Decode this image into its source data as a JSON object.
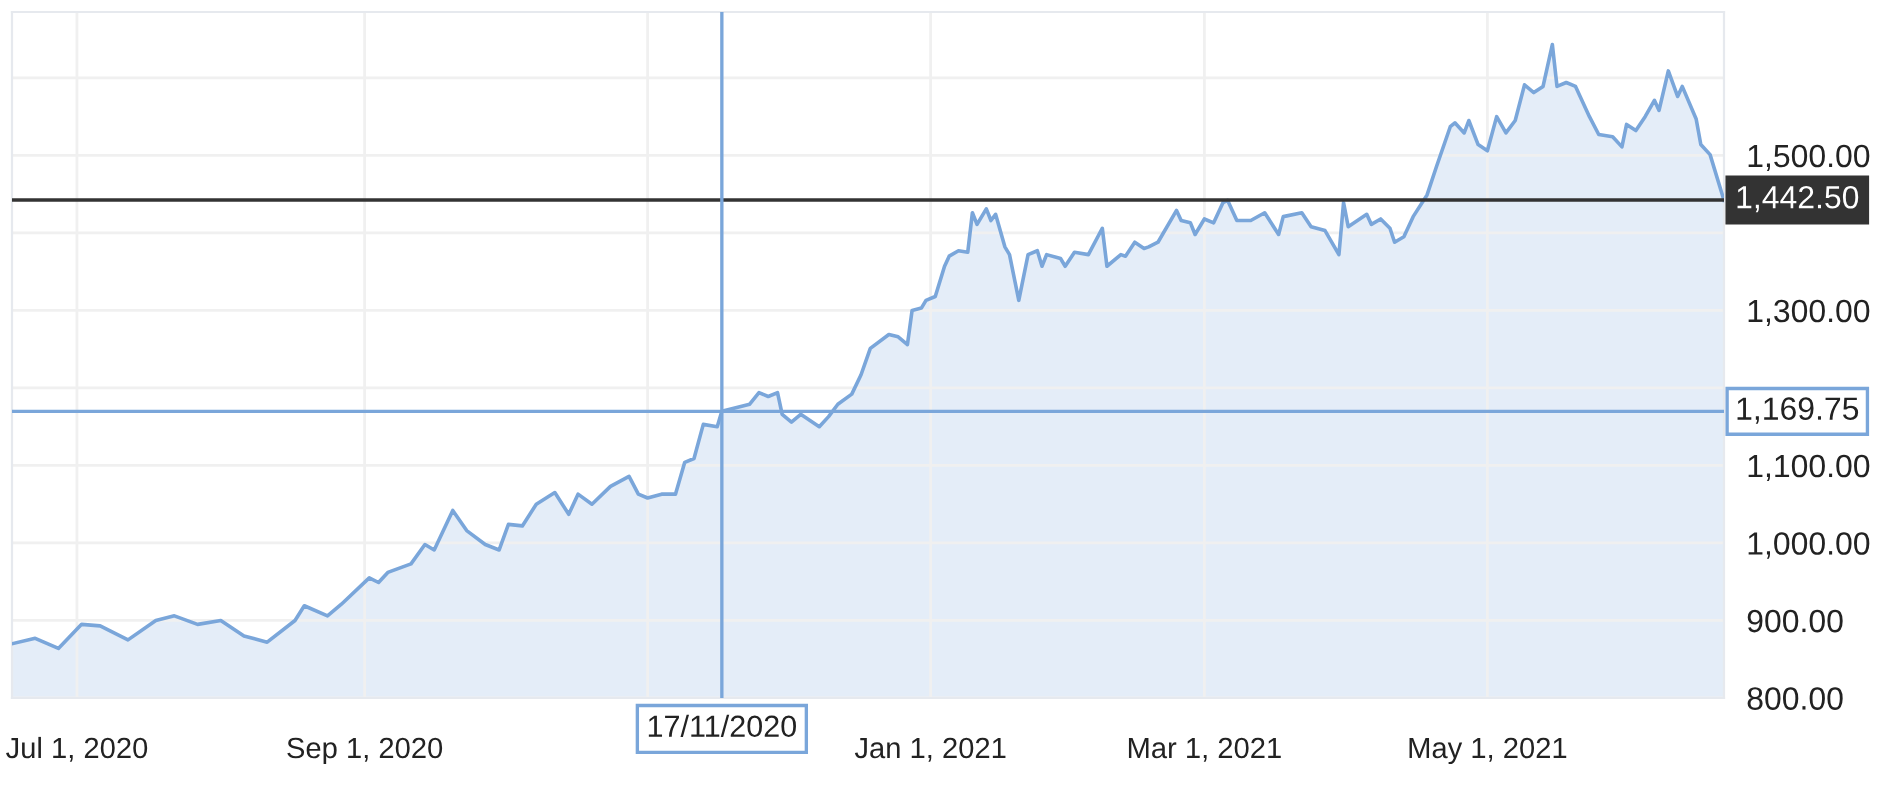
{
  "chart_data": {
    "type": "area",
    "x": [
      "2020-06-17",
      "2020-06-22",
      "2020-06-27",
      "2020-07-02",
      "2020-07-06",
      "2020-07-12",
      "2020-07-18",
      "2020-07-22",
      "2020-07-27",
      "2020-08-01",
      "2020-08-06",
      "2020-08-11",
      "2020-08-17",
      "2020-08-19",
      "2020-08-24",
      "2020-08-27",
      "2020-09-02",
      "2020-09-04",
      "2020-09-06",
      "2020-09-11",
      "2020-09-14",
      "2020-09-16",
      "2020-09-20",
      "2020-09-23",
      "2020-09-27",
      "2020-09-30",
      "2020-10-02",
      "2020-10-05",
      "2020-10-08",
      "2020-10-12",
      "2020-10-15",
      "2020-10-17",
      "2020-10-20",
      "2020-10-24",
      "2020-10-28",
      "2020-10-30",
      "2020-11-01",
      "2020-11-04",
      "2020-11-07",
      "2020-11-09",
      "2020-11-11",
      "2020-11-13",
      "2020-11-16",
      "2020-11-17",
      "2020-11-23",
      "2020-11-25",
      "2020-11-27",
      "2020-11-29",
      "2020-11-30",
      "2020-12-02",
      "2020-12-04",
      "2020-12-08",
      "2020-12-10",
      "2020-12-12",
      "2020-12-15",
      "2020-12-17",
      "2020-12-19",
      "2020-12-23",
      "2020-12-25",
      "2020-12-27",
      "2020-12-28",
      "2020-12-30",
      "2020-12-31",
      "2021-01-02",
      "2021-01-04",
      "2021-01-05",
      "2021-01-07",
      "2021-01-09",
      "2021-01-10",
      "2021-01-11",
      "2021-01-13",
      "2021-01-14",
      "2021-01-15",
      "2021-01-17",
      "2021-01-18",
      "2021-01-20",
      "2021-01-22",
      "2021-01-24",
      "2021-01-25",
      "2021-01-26",
      "2021-01-29",
      "2021-01-30",
      "2021-02-01",
      "2021-02-04",
      "2021-02-07",
      "2021-02-08",
      "2021-02-11",
      "2021-02-12",
      "2021-02-14",
      "2021-02-16",
      "2021-02-17",
      "2021-02-19",
      "2021-02-23",
      "2021-02-24",
      "2021-02-26",
      "2021-02-27",
      "2021-03-01",
      "2021-03-03",
      "2021-03-05",
      "2021-03-06",
      "2021-03-08",
      "2021-03-11",
      "2021-03-14",
      "2021-03-17",
      "2021-03-18",
      "2021-03-22",
      "2021-03-24",
      "2021-03-27",
      "2021-03-30",
      "2021-03-31",
      "2021-04-01",
      "2021-04-05",
      "2021-04-06",
      "2021-04-08",
      "2021-04-10",
      "2021-04-11",
      "2021-04-13",
      "2021-04-15",
      "2021-04-18",
      "2021-04-20",
      "2021-04-23",
      "2021-04-24",
      "2021-04-26",
      "2021-04-27",
      "2021-04-29",
      "2021-05-01",
      "2021-05-03",
      "2021-05-05",
      "2021-05-07",
      "2021-05-09",
      "2021-05-11",
      "2021-05-13",
      "2021-05-15",
      "2021-05-16",
      "2021-05-18",
      "2021-05-20",
      "2021-05-23",
      "2021-05-25",
      "2021-05-28",
      "2021-05-30",
      "2021-05-31",
      "2021-06-02",
      "2021-06-04",
      "2021-06-06",
      "2021-06-07",
      "2021-06-09",
      "2021-06-11",
      "2021-06-12",
      "2021-06-15",
      "2021-06-16",
      "2021-06-18",
      "2021-06-21"
    ],
    "series": [
      {
        "color": "#7aa6da",
        "values": [
          870,
          877,
          864,
          895,
          893,
          875,
          900,
          906,
          895,
          900,
          880,
          872,
          900,
          919,
          906,
          921,
          955,
          949,
          962,
          973,
          998,
          991,
          1042,
          1016,
          998,
          991,
          1024,
          1022,
          1050,
          1065,
          1037,
          1063,
          1050,
          1073,
          1086,
          1063,
          1058,
          1063,
          1063,
          1104,
          1109,
          1153,
          1150,
          1170,
          1179,
          1194,
          1189,
          1194,
          1166,
          1156,
          1166,
          1150,
          1163,
          1179,
          1192,
          1217,
          1251,
          1269,
          1266,
          1256,
          1300,
          1303,
          1313,
          1318,
          1357,
          1370,
          1377,
          1375,
          1426,
          1411,
          1431,
          1416,
          1424,
          1382,
          1372,
          1313,
          1372,
          1377,
          1357,
          1372,
          1367,
          1357,
          1375,
          1372,
          1406,
          1357,
          1372,
          1370,
          1388,
          1380,
          1382,
          1388,
          1429,
          1416,
          1413,
          1398,
          1418,
          1413,
          1439,
          1442,
          1416,
          1416,
          1426,
          1398,
          1421,
          1426,
          1408,
          1403,
          1372,
          1439,
          1408,
          1424,
          1411,
          1418,
          1406,
          1388,
          1395,
          1421,
          1449,
          1485,
          1537,
          1542,
          1529,
          1545,
          1514,
          1506,
          1550,
          1529,
          1545,
          1591,
          1581,
          1589,
          1643,
          1589,
          1594,
          1589,
          1550,
          1527,
          1524,
          1511,
          1540,
          1532,
          1550,
          1571,
          1558,
          1609,
          1576,
          1589,
          1547,
          1514,
          1501,
          1442
        ]
      }
    ],
    "xlim": [
      "2020-06-17",
      "2021-06-21"
    ],
    "xticks": [
      {
        "value": "2020-07-01",
        "label": "Jul 1, 2020"
      },
      {
        "value": "2020-09-01",
        "label": "Sep 1, 2020"
      },
      {
        "value": "2020-11-01",
        "label": null
      },
      {
        "value": "2021-01-01",
        "label": "Jan 1, 2021"
      },
      {
        "value": "2021-03-01",
        "label": "Mar 1, 2021"
      },
      {
        "value": "2021-05-01",
        "label": "May 1, 2021"
      }
    ],
    "ylim": [
      800,
      1685
    ],
    "yticks": [
      {
        "value": 800,
        "label": "800.00"
      },
      {
        "value": 900,
        "label": "900.00"
      },
      {
        "value": 1000,
        "label": "1,000.00"
      },
      {
        "value": 1100,
        "label": "1,100.00"
      },
      {
        "value": 1200,
        "label": null
      },
      {
        "value": 1300,
        "label": "1,300.00"
      },
      {
        "value": 1400,
        "label": null
      },
      {
        "value": 1500,
        "label": "1,500.00"
      },
      {
        "value": 1600,
        "label": null
      }
    ],
    "ref_lines": [
      {
        "axis": "y",
        "value": 1442.5,
        "label": "1,442.50",
        "color": "#333333"
      },
      {
        "axis": "y",
        "value": 1169.75,
        "label": "1,169.75",
        "color": "#7aa6da"
      },
      {
        "axis": "x",
        "value": "2020-11-17",
        "label": "17/11/2020",
        "color": "#7aa6da"
      }
    ],
    "grid": true,
    "legend": false
  }
}
